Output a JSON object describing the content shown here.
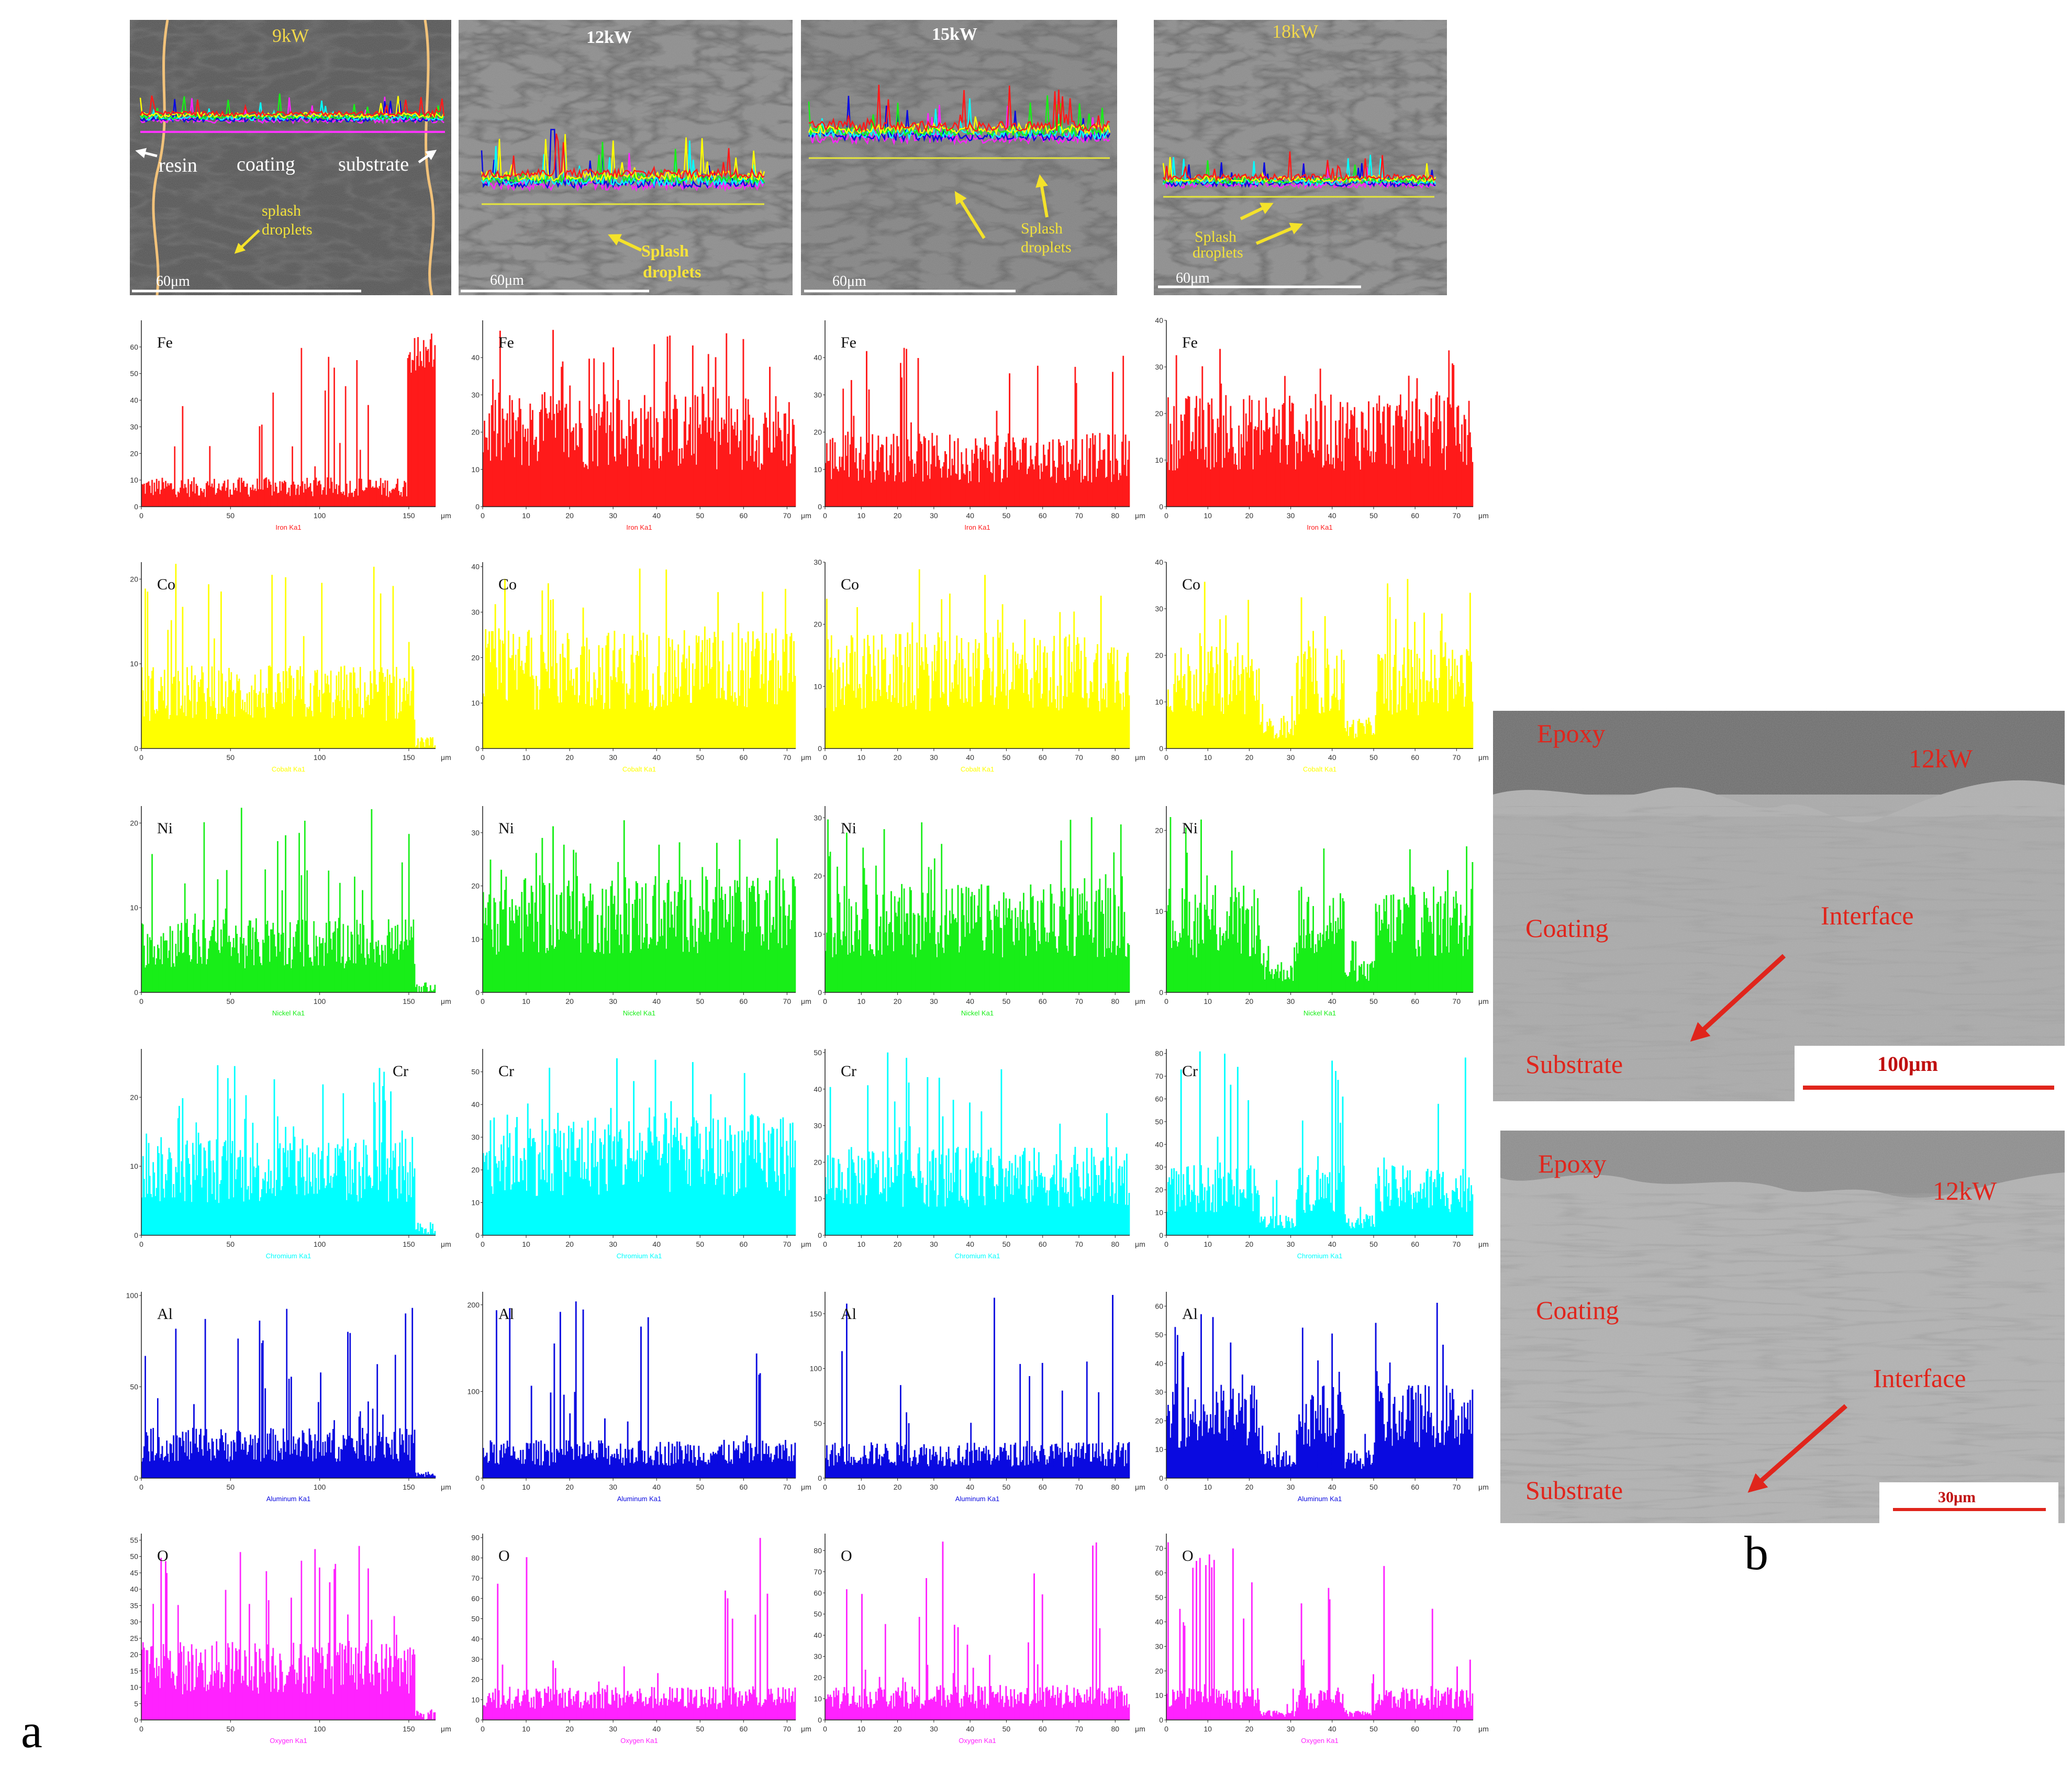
{
  "figure": {
    "panel_a_label": "a",
    "panel_b_label": "b"
  },
  "sem_panels": [
    {
      "title": "9kW",
      "scale_bar": "60μm",
      "labels": {
        "resin": "resin",
        "coating": "coating",
        "substrate": "substrate",
        "splash": "splash",
        "droplets": "droplets"
      }
    },
    {
      "title": "12kW",
      "scale_bar": "60μm",
      "labels": {
        "splash": "Splash",
        "droplets": "droplets"
      }
    },
    {
      "title": "15kW",
      "scale_bar": "60μm",
      "labels": {
        "splash": "Splash",
        "droplets": "droplets"
      }
    },
    {
      "title": "18kW",
      "scale_bar": "60μm",
      "labels": {
        "splash": "Splash",
        "droplets": "droplets"
      }
    }
  ],
  "colors": {
    "Fe": "#ff1a1a",
    "Co": "#ffff00",
    "Ni": "#18ee18",
    "Cr": "#00ffff",
    "Al": "#0a0ae0",
    "O": "#ff22ff",
    "annotation_red": "#e0251c"
  },
  "chart_data": {
    "type": "bar",
    "description_axis": "μm",
    "x_unit": "μm",
    "columns": [
      {
        "power": "9kW",
        "xlim": [
          0,
          165
        ],
        "xticks": [
          "0",
          "50",
          "100",
          "150"
        ],
        "profile": "low_fe_high_substrate"
      },
      {
        "power": "12kW",
        "xlim": [
          0,
          72
        ],
        "xticks": [
          "0",
          "10",
          "20",
          "30",
          "40",
          "50",
          "60",
          "70"
        ]
      },
      {
        "power": "15kW",
        "xlim": [
          0,
          84
        ],
        "xticks": [
          "0",
          "10",
          "20",
          "30",
          "40",
          "50",
          "60",
          "70",
          "80"
        ]
      },
      {
        "power": "18kW",
        "xlim": [
          0,
          74
        ],
        "xticks": [
          "0",
          "10",
          "20",
          "30",
          "40",
          "50",
          "60",
          "70"
        ]
      }
    ],
    "series": [
      {
        "name": "Fe",
        "line": "Iron Ka1",
        "ylims": [
          [
            0,
            70
          ],
          [
            0,
            50
          ],
          [
            0,
            50
          ],
          [
            0,
            40
          ]
        ],
        "yticks": [
          [
            "0",
            "10",
            "20",
            "30",
            "40",
            "50",
            "60"
          ],
          [
            "0",
            "10",
            "20",
            "30",
            "40"
          ],
          [
            "0",
            "10",
            "20",
            "30",
            "40"
          ],
          [
            "0",
            "10",
            "20",
            "30",
            "40"
          ]
        ],
        "levels": [
          [
            10,
            60
          ],
          [
            28,
            48
          ],
          [
            18,
            44
          ],
          [
            22,
            34
          ]
        ]
      },
      {
        "name": "Co",
        "line": "Cobalt Ka1",
        "ylims": [
          [
            0,
            22
          ],
          [
            0,
            41
          ],
          [
            0,
            30
          ],
          [
            0,
            40
          ]
        ],
        "yticks": [
          [
            "0",
            "10",
            "20"
          ],
          [
            "0",
            "10",
            "20",
            "30",
            "40"
          ],
          [
            "0",
            "10",
            "20",
            "30"
          ],
          [
            "0",
            "10",
            "20",
            "30",
            "40"
          ]
        ],
        "levels": [
          [
            9,
            22
          ],
          [
            24,
            41
          ],
          [
            17,
            29
          ],
          [
            20,
            38
          ]
        ]
      },
      {
        "name": "Ni",
        "line": "Nickel Ka1",
        "ylims": [
          [
            0,
            22
          ],
          [
            0,
            35
          ],
          [
            0,
            32
          ],
          [
            0,
            23
          ]
        ],
        "yticks": [
          [
            "0",
            "10",
            "20"
          ],
          [
            "0",
            "10",
            "20",
            "30"
          ],
          [
            "0",
            "10",
            "20",
            "30"
          ],
          [
            "0",
            "10",
            "20"
          ]
        ],
        "levels": [
          [
            8,
            22
          ],
          [
            20,
            33
          ],
          [
            17,
            31
          ],
          [
            12,
            22
          ]
        ]
      },
      {
        "name": "Cr",
        "line": "Chromium Ka1",
        "ylims": [
          [
            0,
            27
          ],
          [
            0,
            57
          ],
          [
            0,
            51
          ],
          [
            0,
            82
          ]
        ],
        "yticks": [
          [
            "0",
            "10",
            "20"
          ],
          [
            "0",
            "10",
            "20",
            "30",
            "40",
            "50"
          ],
          [
            "0",
            "10",
            "20",
            "30",
            "40",
            "50"
          ],
          [
            "0",
            "10",
            "20",
            "30",
            "40",
            "50",
            "60",
            "70",
            "80"
          ]
        ],
        "levels": [
          [
            13,
            27
          ],
          [
            34,
            55
          ],
          [
            22,
            50
          ],
          [
            28,
            82
          ]
        ]
      },
      {
        "name": "Al",
        "line": "Aluminum Ka1",
        "ylims": [
          [
            0,
            102
          ],
          [
            0,
            215
          ],
          [
            0,
            170
          ],
          [
            0,
            65
          ]
        ],
        "yticks": [
          [
            "0",
            "50",
            "100"
          ],
          [
            "0",
            "100",
            "200"
          ],
          [
            "0",
            "50",
            "100",
            "150"
          ],
          [
            "0",
            "10",
            "20",
            "30",
            "40",
            "50",
            "60"
          ]
        ],
        "levels": [
          [
            25,
            100
          ],
          [
            40,
            210
          ],
          [
            30,
            168
          ],
          [
            30,
            63
          ]
        ]
      },
      {
        "name": "O",
        "line": "Oxygen Ka1",
        "ylims": [
          [
            0,
            57
          ],
          [
            0,
            92
          ],
          [
            0,
            88
          ],
          [
            0,
            76
          ]
        ],
        "yticks": [
          [
            "0",
            "5",
            "10",
            "15",
            "20",
            "25",
            "30",
            "35",
            "40",
            "45",
            "50",
            "55"
          ],
          [
            "0",
            "10",
            "20",
            "30",
            "40",
            "50",
            "60",
            "70",
            "80",
            "90"
          ],
          [
            "0",
            "10",
            "20",
            "30",
            "40",
            "50",
            "60",
            "70",
            "80"
          ],
          [
            "0",
            "10",
            "20",
            "30",
            "40",
            "50",
            "60",
            "70"
          ]
        ],
        "levels": [
          [
            22,
            55
          ],
          [
            15,
            90
          ],
          [
            15,
            85
          ],
          [
            12,
            74
          ]
        ]
      }
    ]
  },
  "panel_b": {
    "images": [
      {
        "epoxy": "Epoxy",
        "power": "12kW",
        "coating": "Coating",
        "interface": "Interface",
        "substrate": "Substrate",
        "scale_bar": "100μm"
      },
      {
        "epoxy": "Epoxy",
        "power": "12kW",
        "coating": "Coating",
        "interface": "Interface",
        "substrate": "Substrate",
        "scale_bar": "30μm"
      }
    ]
  }
}
